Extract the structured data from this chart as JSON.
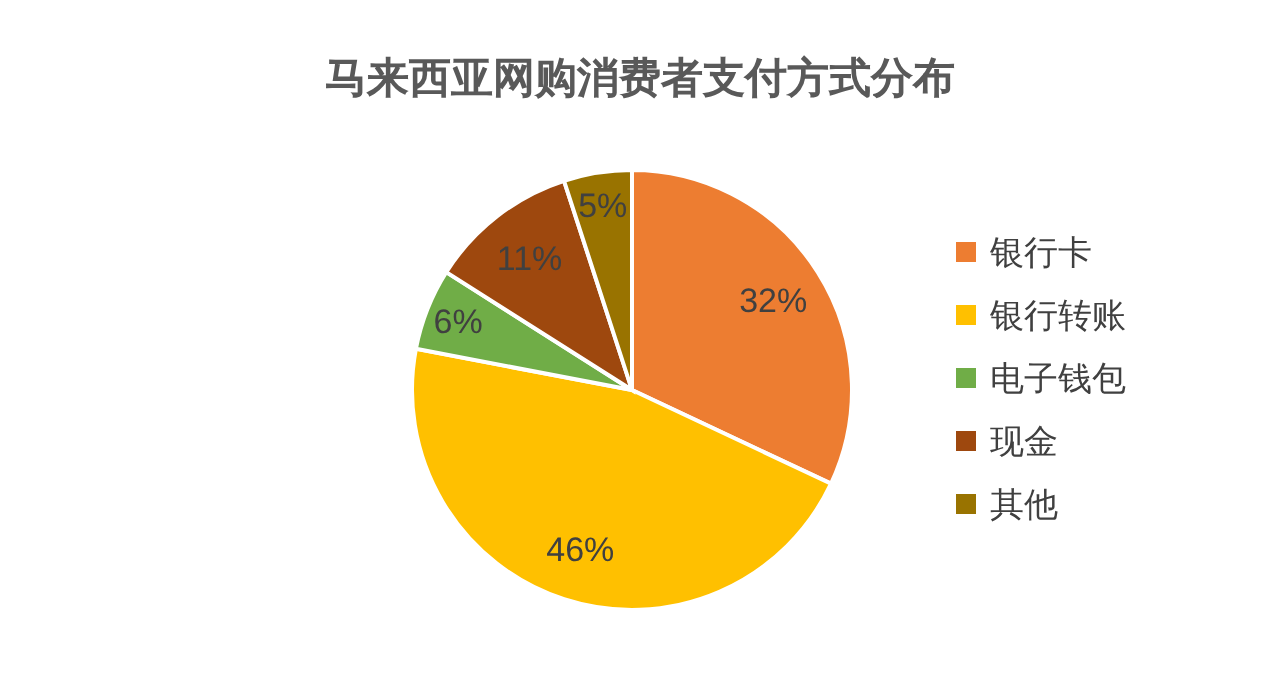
{
  "chart_data": {
    "type": "pie",
    "title": "马来西亚网购消费者支付方式分布",
    "categories": [
      "银行卡",
      "银行转账",
      "电子钱包",
      "现金",
      "其他"
    ],
    "values": [
      32,
      46,
      6,
      11,
      5
    ],
    "colors": [
      "#ed7d31",
      "#ffc000",
      "#70ad47",
      "#9e480e",
      "#997300"
    ],
    "value_labels": [
      "32%",
      "46%",
      "6%",
      "11%",
      "5%"
    ],
    "legend": "right"
  }
}
